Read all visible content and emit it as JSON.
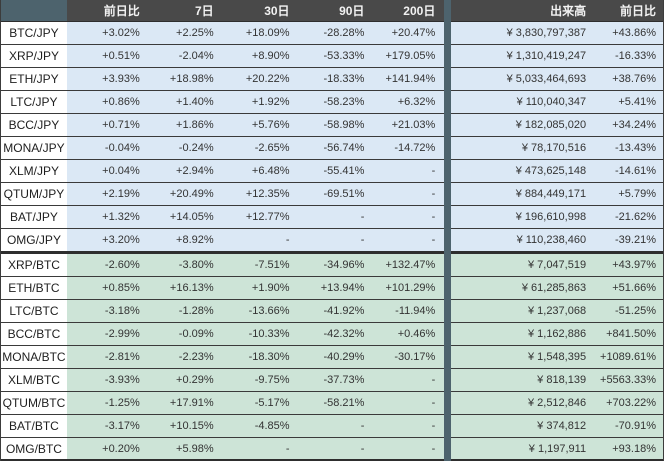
{
  "colors": {
    "header_bg": "#494949",
    "accent_slate": "#4d636d",
    "jpy_row_bg": "#dbe8f5",
    "btc_row_bg": "#cde4d7",
    "name_cell_bg": "#ffffff",
    "border": "#3a3a3a"
  },
  "table": {
    "corner_label": "",
    "columns": [
      "前日比",
      "7日",
      "30日",
      "90日",
      "200日",
      "出来高",
      "前日比"
    ],
    "sections": [
      {
        "key": "jpy",
        "rows": [
          {
            "pair": "BTC/JPY",
            "values": [
              "+3.02%",
              "+2.25%",
              "+18.09%",
              "-28.28%",
              "+20.47%",
              "¥ 3,830,797,387",
              "+43.86%"
            ]
          },
          {
            "pair": "XRP/JPY",
            "values": [
              "+0.51%",
              "-2.04%",
              "+8.90%",
              "-53.33%",
              "+179.05%",
              "¥ 1,310,419,247",
              "-16.33%"
            ]
          },
          {
            "pair": "ETH/JPY",
            "values": [
              "+3.93%",
              "+18.98%",
              "+20.22%",
              "-18.33%",
              "+141.94%",
              "¥ 5,033,464,693",
              "+38.76%"
            ]
          },
          {
            "pair": "LTC/JPY",
            "values": [
              "+0.86%",
              "+1.40%",
              "+1.92%",
              "-58.23%",
              "+6.32%",
              "¥ 110,040,347",
              "+5.41%"
            ]
          },
          {
            "pair": "BCC/JPY",
            "values": [
              "+0.71%",
              "+1.86%",
              "+5.76%",
              "-58.98%",
              "+21.03%",
              "¥ 182,085,020",
              "+34.24%"
            ]
          },
          {
            "pair": "MONA/JPY",
            "values": [
              "-0.04%",
              "-0.24%",
              "-2.65%",
              "-56.74%",
              "-14.72%",
              "¥ 78,170,516",
              "-13.43%"
            ]
          },
          {
            "pair": "XLM/JPY",
            "values": [
              "+0.04%",
              "+2.94%",
              "+6.48%",
              "-55.41%",
              "-",
              "¥ 473,625,148",
              "-14.61%"
            ]
          },
          {
            "pair": "QTUM/JPY",
            "values": [
              "+2.19%",
              "+20.49%",
              "+12.35%",
              "-69.51%",
              "-",
              "¥ 884,449,171",
              "+5.79%"
            ]
          },
          {
            "pair": "BAT/JPY",
            "values": [
              "+1.32%",
              "+14.05%",
              "+12.77%",
              "-",
              "-",
              "¥ 196,610,998",
              "-21.62%"
            ]
          },
          {
            "pair": "OMG/JPY",
            "values": [
              "+3.20%",
              "+8.92%",
              "-",
              "-",
              "-",
              "¥ 110,238,460",
              "-39.21%"
            ]
          }
        ]
      },
      {
        "key": "btc",
        "rows": [
          {
            "pair": "XRP/BTC",
            "values": [
              "-2.60%",
              "-3.80%",
              "-7.51%",
              "-34.96%",
              "+132.47%",
              "¥ 7,047,519",
              "+43.97%"
            ]
          },
          {
            "pair": "ETH/BTC",
            "values": [
              "+0.85%",
              "+16.13%",
              "+1.90%",
              "+13.94%",
              "+101.29%",
              "¥ 61,285,863",
              "+51.66%"
            ]
          },
          {
            "pair": "LTC/BTC",
            "values": [
              "-3.18%",
              "-1.28%",
              "-13.66%",
              "-41.92%",
              "-11.94%",
              "¥ 1,237,068",
              "-51.25%"
            ]
          },
          {
            "pair": "BCC/BTC",
            "values": [
              "-2.99%",
              "-0.09%",
              "-10.33%",
              "-42.32%",
              "+0.46%",
              "¥ 1,162,886",
              "+841.50%"
            ]
          },
          {
            "pair": "MONA/BTC",
            "values": [
              "-2.81%",
              "-2.23%",
              "-18.30%",
              "-40.29%",
              "-30.17%",
              "¥ 1,548,395",
              "+1089.61%"
            ]
          },
          {
            "pair": "XLM/BTC",
            "values": [
              "-3.93%",
              "+0.29%",
              "-9.75%",
              "-37.73%",
              "-",
              "¥ 818,139",
              "+5563.33%"
            ]
          },
          {
            "pair": "QTUM/BTC",
            "values": [
              "-1.25%",
              "+17.91%",
              "-5.17%",
              "-58.21%",
              "-",
              "¥ 2,512,846",
              "+703.22%"
            ]
          },
          {
            "pair": "BAT/BTC",
            "values": [
              "-3.17%",
              "+10.15%",
              "-4.85%",
              "-",
              "-",
              "¥ 374,812",
              "-70.91%"
            ]
          },
          {
            "pair": "OMG/BTC",
            "values": [
              "+0.20%",
              "+5.98%",
              "-",
              "-",
              "-",
              "¥ 1,197,911",
              "+93.18%"
            ]
          }
        ]
      }
    ]
  }
}
